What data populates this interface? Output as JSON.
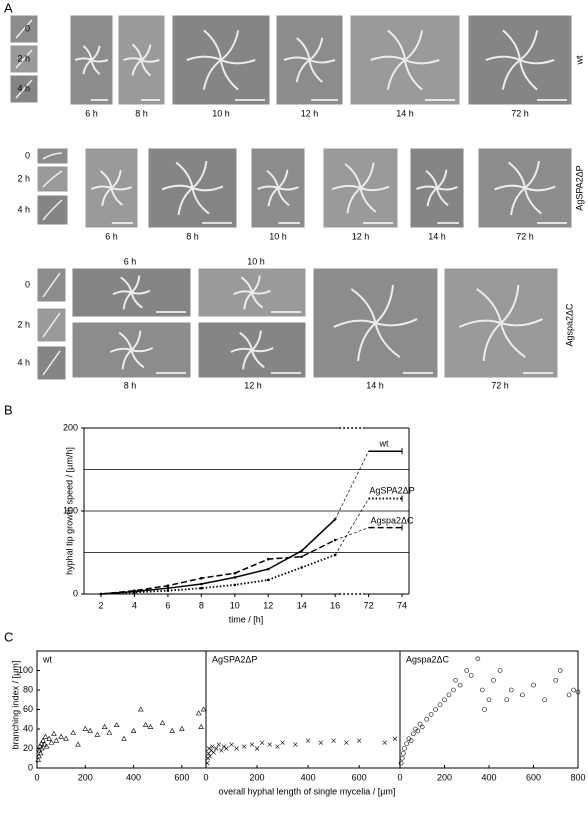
{
  "panel_a": {
    "label": "A",
    "rows": [
      {
        "name": "wt",
        "small": [
          "0",
          "2 h",
          "4 h"
        ],
        "images": [
          "6 h",
          "8 h",
          "10 h",
          "12 h",
          "14 h",
          "72 h"
        ]
      },
      {
        "name": "AgSPA2ΔP",
        "small": [
          "0",
          "2 h",
          "4 h"
        ],
        "images": [
          "6 h",
          "8 h",
          "10 h",
          "12 h",
          "14 h",
          "72 h"
        ]
      },
      {
        "name": "Agspa2ΔC",
        "small": [
          "0",
          "2 h",
          "4 h"
        ],
        "images": [
          "6 h",
          "8 h",
          "10 h",
          "12 h",
          "14 h",
          "72 h"
        ]
      }
    ]
  },
  "chart_data": [
    {
      "type": "line",
      "panel": "B",
      "xlabel": "time / [h]",
      "ylabel": "hyphal tip growth speed / [µm/h]",
      "categories": [
        "2",
        "4",
        "6",
        "8",
        "10",
        "12",
        "14",
        "16",
        "72",
        "74"
      ],
      "ylim": [
        0,
        200
      ],
      "yticks": [
        0,
        100,
        200
      ],
      "grid_lines": [
        50,
        100,
        150
      ],
      "series": [
        {
          "name": "wt",
          "color": "#000000",
          "line_style": "solid",
          "values": [
            0,
            3,
            7,
            12,
            20,
            30,
            52,
            90,
            172,
            172
          ]
        },
        {
          "name": "AgSPA2ΔP",
          "color": "#000000",
          "line_style": "dotted",
          "values": [
            0,
            2,
            4,
            7,
            11,
            17,
            32,
            47,
            115,
            115
          ]
        },
        {
          "name": "Agspa2ΔC",
          "color": "#000000",
          "line_style": "dashed",
          "values": [
            0,
            4,
            10,
            19,
            25,
            42,
            45,
            65,
            80,
            80
          ]
        }
      ]
    },
    {
      "type": "scatter",
      "panel": "C",
      "title": "wt",
      "marker": "triangle",
      "xlabel": "overall hyphal length of single mycelia / [µm]",
      "ylabel": "branching  index / [µm]",
      "xlim": [
        0,
        700
      ],
      "xticks": [
        0,
        200,
        400,
        600
      ],
      "ylim": [
        0,
        120
      ],
      "yticks": [
        0,
        20,
        40,
        60,
        80,
        100
      ],
      "x": [
        5,
        8,
        10,
        12,
        15,
        18,
        20,
        25,
        30,
        35,
        40,
        50,
        60,
        70,
        80,
        100,
        120,
        150,
        170,
        200,
        220,
        250,
        280,
        300,
        330,
        360,
        400,
        430,
        450,
        470,
        520,
        560,
        600,
        670,
        680,
        690
      ],
      "values": [
        8,
        12,
        18,
        22,
        15,
        25,
        20,
        28,
        24,
        32,
        22,
        30,
        26,
        35,
        28,
        32,
        30,
        36,
        24,
        40,
        38,
        34,
        42,
        36,
        44,
        30,
        38,
        60,
        44,
        42,
        46,
        38,
        40,
        56,
        42,
        60
      ]
    },
    {
      "type": "scatter",
      "panel": "C",
      "title": "AgSPA2ΔP",
      "marker": "x",
      "xlim": [
        0,
        760
      ],
      "xticks": [
        0,
        200,
        400,
        600
      ],
      "ylim": [
        0,
        120
      ],
      "x": [
        5,
        8,
        10,
        12,
        15,
        20,
        25,
        30,
        40,
        50,
        60,
        70,
        80,
        100,
        120,
        150,
        180,
        200,
        220,
        250,
        280,
        300,
        350,
        400,
        450,
        500,
        550,
        600,
        700,
        740
      ],
      "values": [
        5,
        10,
        15,
        20,
        12,
        18,
        22,
        16,
        20,
        24,
        18,
        22,
        20,
        24,
        20,
        22,
        24,
        20,
        26,
        24,
        22,
        26,
        24,
        28,
        26,
        28,
        26,
        28,
        26,
        30
      ]
    },
    {
      "type": "scatter",
      "panel": "C",
      "title": "Agspa2ΔC",
      "marker": "circle",
      "xlim": [
        0,
        800
      ],
      "xticks": [
        0,
        200,
        400,
        600,
        800
      ],
      "ylim": [
        0,
        120
      ],
      "x": [
        5,
        10,
        15,
        20,
        30,
        40,
        50,
        60,
        70,
        80,
        90,
        100,
        120,
        140,
        160,
        180,
        200,
        220,
        240,
        250,
        270,
        300,
        320,
        350,
        370,
        380,
        400,
        420,
        450,
        480,
        500,
        550,
        600,
        650,
        700,
        720,
        760,
        780,
        800
      ],
      "values": [
        5,
        10,
        15,
        20,
        25,
        30,
        28,
        35,
        40,
        38,
        45,
        42,
        50,
        55,
        60,
        65,
        70,
        75,
        80,
        90,
        85,
        100,
        95,
        112,
        80,
        60,
        70,
        90,
        100,
        70,
        80,
        75,
        85,
        70,
        90,
        100,
        75,
        80,
        78
      ]
    }
  ]
}
